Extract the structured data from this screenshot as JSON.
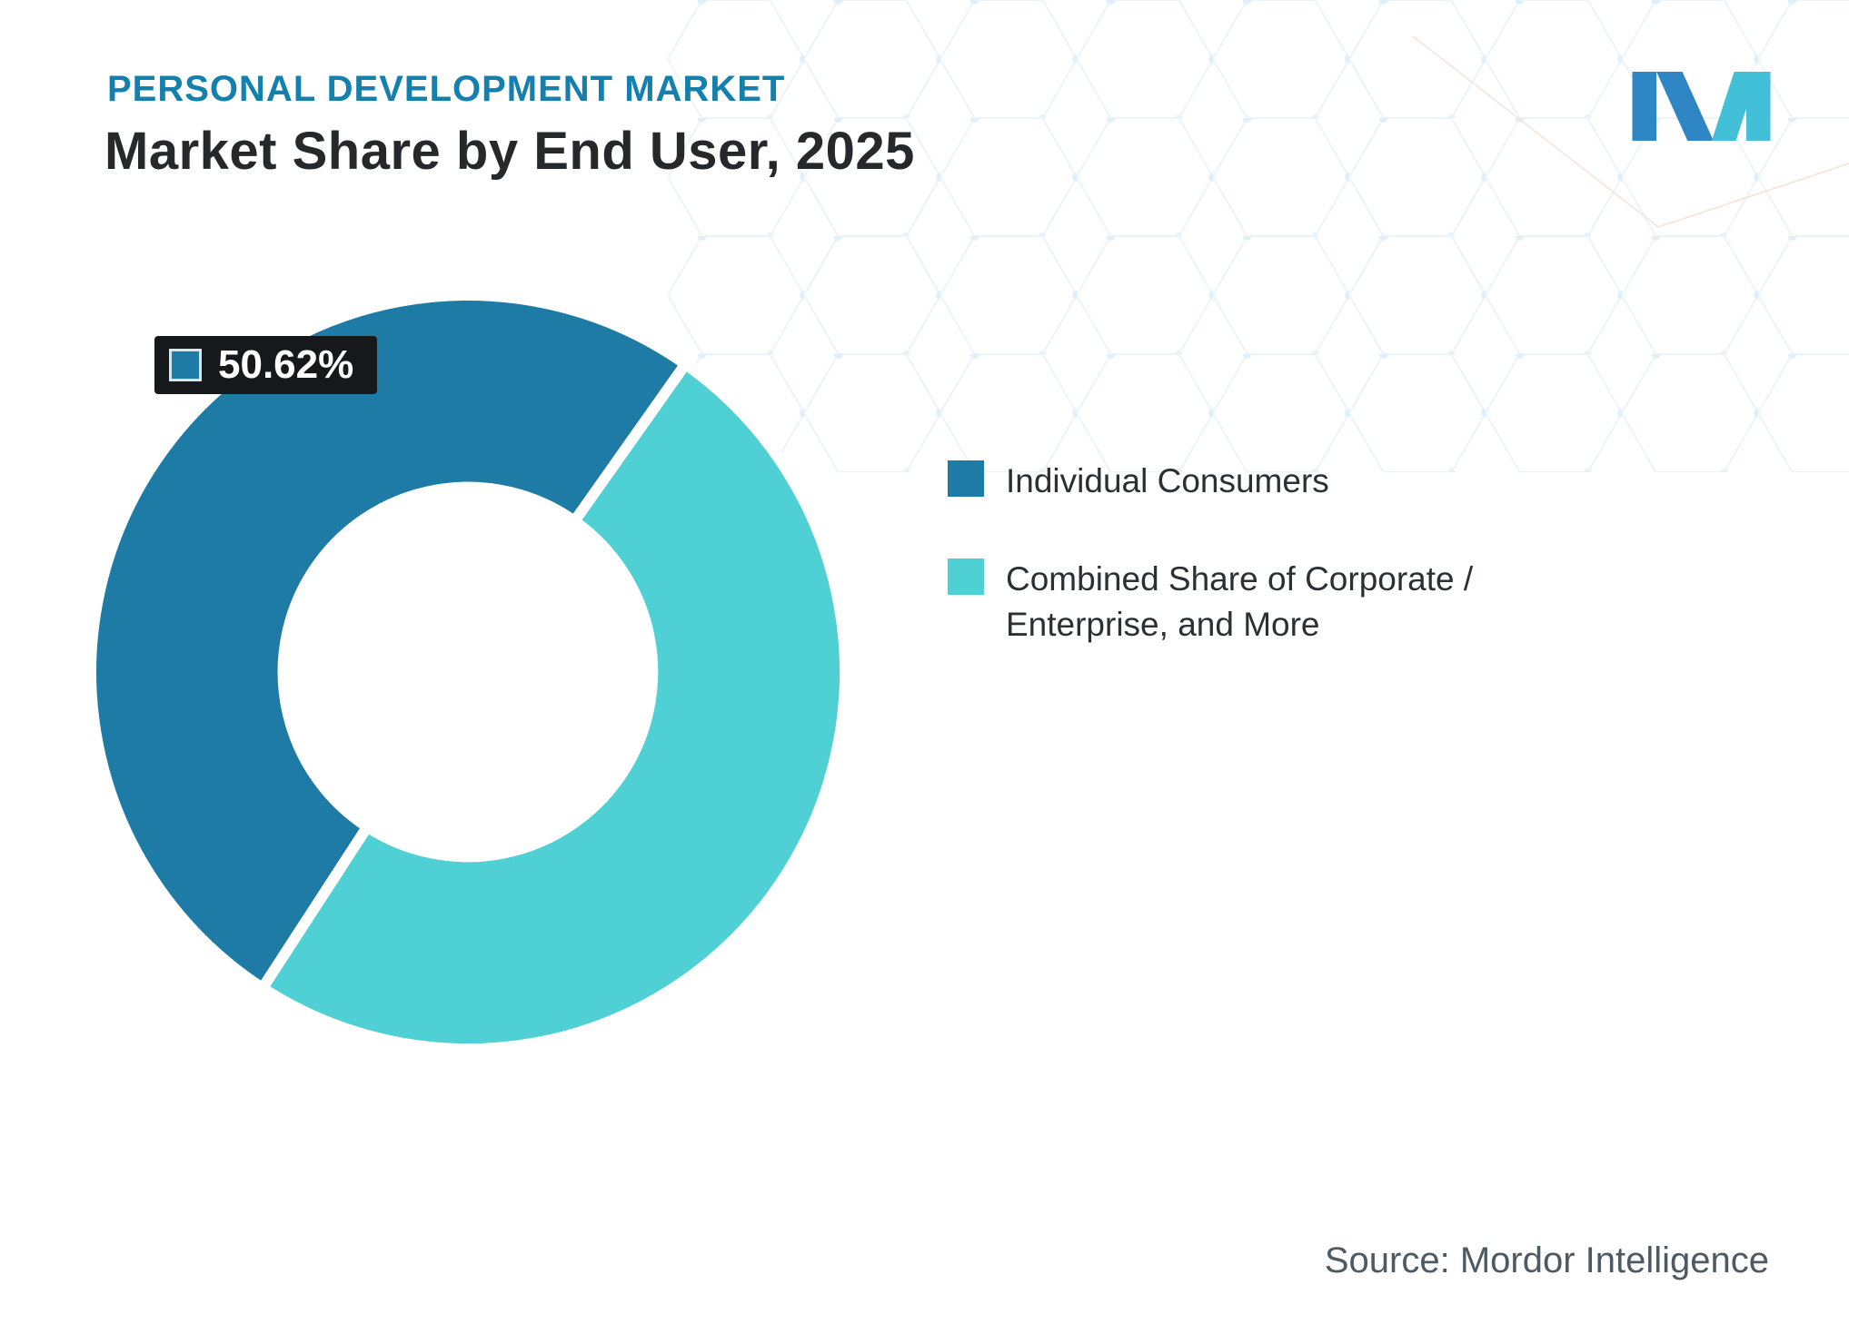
{
  "header": {
    "eyebrow": "PERSONAL DEVELOPMENT MARKET",
    "title": "Market Share by End User, 2025"
  },
  "colors": {
    "eyebrow_blue": "#1380ad",
    "heading_dark": "#26292c",
    "badge_background": "#16191c",
    "logo_blue": "#2e86c4",
    "logo_teal": "#41c0d8",
    "hex_pattern_blue": "#d7ebf5"
  },
  "chart_data": {
    "type": "pie",
    "title": "Market Share by End User, 2025",
    "donut": true,
    "inner_radius_ratio": 0.49,
    "start_angle_deg": 213,
    "legend_position": "right",
    "slices": [
      {
        "label": "Individual Consumers",
        "value": 50.62,
        "color": "#1e7ba6",
        "data_label": "50.62%"
      },
      {
        "label": "Combined Share of Corporate / Enterprise, and More",
        "value": 49.38,
        "color": "#4fd0d4",
        "data_label": ""
      }
    ]
  },
  "footer": {
    "source": "Source: Mordor Intelligence"
  }
}
